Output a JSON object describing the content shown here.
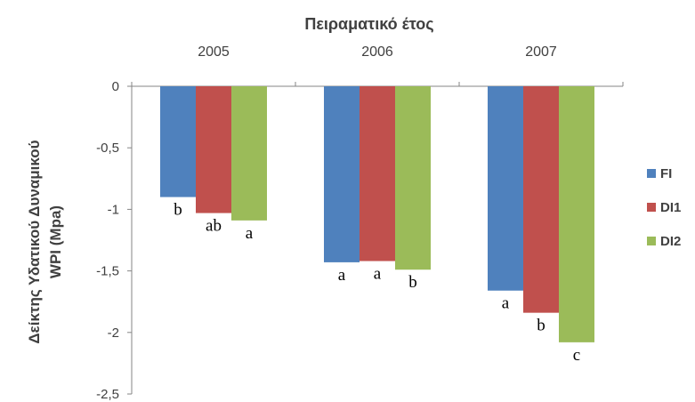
{
  "chart_data": {
    "type": "bar",
    "title": "",
    "xlabel": "Πειραματικό έτος",
    "ylabel_line1": "Δείκτης Υδατικού Δυναμικού",
    "ylabel_line2": "WPI (Mpa)",
    "categories": [
      "2005",
      "2006",
      "2007"
    ],
    "ylim": [
      -2.5,
      0
    ],
    "yticks": [
      0,
      -0.5,
      -1,
      -1.5,
      -2,
      -2.5
    ],
    "ytick_labels": [
      "0",
      "-0,5",
      "-1",
      "-1,5",
      "-2",
      "-2,5"
    ],
    "grid": false,
    "legend_position": "right",
    "series": [
      {
        "name": "FI",
        "color": "#4f81bd",
        "values": [
          -0.9,
          -1.43,
          -1.66
        ],
        "labels": [
          "b",
          "a",
          "a"
        ]
      },
      {
        "name": "DI1",
        "color": "#c0504d",
        "values": [
          -1.03,
          -1.42,
          -1.84
        ],
        "labels": [
          "ab",
          "a",
          "b"
        ]
      },
      {
        "name": "DI2",
        "color": "#9bbb59",
        "values": [
          -1.09,
          -1.49,
          -2.08
        ],
        "labels": [
          "a",
          "b",
          "c"
        ]
      }
    ]
  }
}
